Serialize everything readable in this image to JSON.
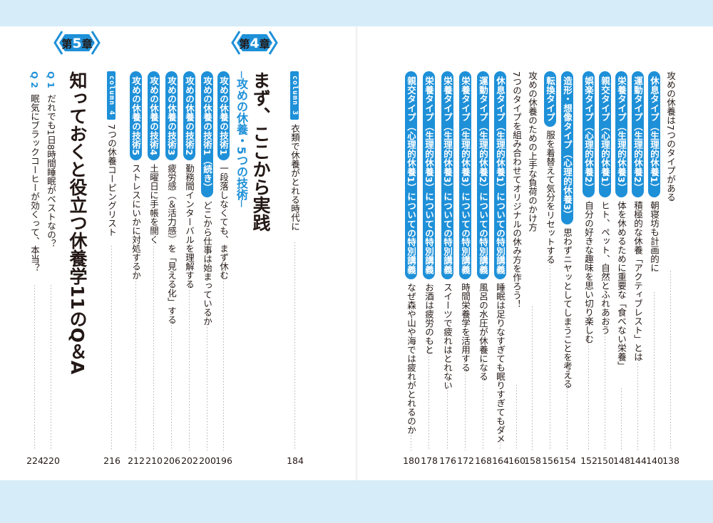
{
  "right_page": {
    "entries": [
      {
        "badge": "",
        "text": "攻めの休養は7つのタイプがある",
        "page": "138"
      },
      {
        "badge": "休息タイプ（生理的休養1）",
        "text": "朝寝坊も計画的に",
        "page": "140"
      },
      {
        "badge": "運動タイプ（生理的休養2）",
        "text": "積極的な休養「アクティブレスト」とは",
        "page": "144"
      },
      {
        "badge": "栄養タイプ（生理的休養3）",
        "text": "体を休めるために重要な「食べない栄養」",
        "page": "148"
      },
      {
        "badge": "親交タイプ（心理的休養1）",
        "text": "ヒト、ペット、自然とふれあおう",
        "page": "150"
      },
      {
        "badge": "娯楽タイプ（心理的休養2）",
        "text": "自分の好きな趣味を思い切り楽しむ",
        "page": "152"
      },
      {
        "badge": "造形・想像タイプ（心理的休養3）",
        "text": "思わずニヤッとしてしまうことを考える",
        "page": "154"
      },
      {
        "badge": "転換タイプ",
        "text": "服を着替えて気分をリセットする",
        "page": "156"
      },
      {
        "badge": "",
        "text": "攻めの休養のための上手な負荷のかけ方",
        "page": "158"
      },
      {
        "badge": "",
        "text": "7つのタイプを組み合わせてオリジナルの休み方を作ろう！",
        "page": "160"
      },
      {
        "badge": "休息タイプ（生理的休養1）についての特別講義",
        "text": "睡眠は足りなすぎても眠りすぎてもダメ",
        "page": "164"
      },
      {
        "badge": "運動タイプ（生理的休養2）についての特別講義",
        "text": "風呂の水圧が休養になる",
        "page": "168"
      },
      {
        "badge": "栄養タイプ（生理的休養3）についての特別講義",
        "text": "時間栄養学を活用する",
        "page": "172"
      },
      {
        "badge": "栄養タイプ（生理的休養3）についての特別講義",
        "text": "スイーツで疲れはとれない",
        "page": "176"
      },
      {
        "badge": "栄養タイプ（生理的休養3）についての特別講義",
        "text": "お酒は疲労のもと",
        "page": "178"
      },
      {
        "badge": "親交タイプ（心理的休養1）についての特別講義",
        "text": "なぜ森や山や海では疲れがとれるのか",
        "page": "180"
      }
    ]
  },
  "left_page": {
    "column3": {
      "label": "column 3",
      "text": "衣類で休養がとれる時代に",
      "page": "184"
    },
    "chapter4": {
      "prefix": "第",
      "number": "4",
      "suffix": "章",
      "title": "まず、ここから実践",
      "subtitle": "─攻めの休養・5つの技術─",
      "entries": [
        {
          "badge": "攻めの休養の技術1",
          "text": "一段落しなくても、まず休む",
          "page": "196"
        },
        {
          "badge": "攻めの休養の技術1（続き）",
          "text": "どこから仕事は始まっているか",
          "page": "200"
        },
        {
          "badge": "攻めの休養の技術2",
          "text": "勤務間インターバルを理解する",
          "page": "202"
        },
        {
          "badge": "攻めの休養の技術3",
          "text": "疲労感（＆活力感）を「見える化」する",
          "page": "206"
        },
        {
          "badge": "攻めの休養の技術4",
          "text": "土曜日に手帳を開く",
          "page": "210"
        },
        {
          "badge": "攻めの休養の技術5",
          "text": "ストレスにいかに対処するか",
          "page": "212"
        }
      ]
    },
    "column4": {
      "label": "column 4",
      "text": "7つの休養コーピングリスト",
      "page": "216"
    },
    "chapter5": {
      "prefix": "第",
      "number": "5",
      "suffix": "章",
      "title": "知っておくと役立つ休養学11のQ＆A",
      "entries": [
        {
          "q": "Q 1",
          "text": "だれでも1日8時間睡眠がベストなの？",
          "page": "220"
        },
        {
          "q": "Q 2",
          "text": "眠気にブラックコーヒーが効くって、本当？",
          "page": "224"
        }
      ]
    }
  },
  "colors": {
    "accent": "#1e90d8",
    "band": "#d6ecf8",
    "text": "#231815"
  }
}
